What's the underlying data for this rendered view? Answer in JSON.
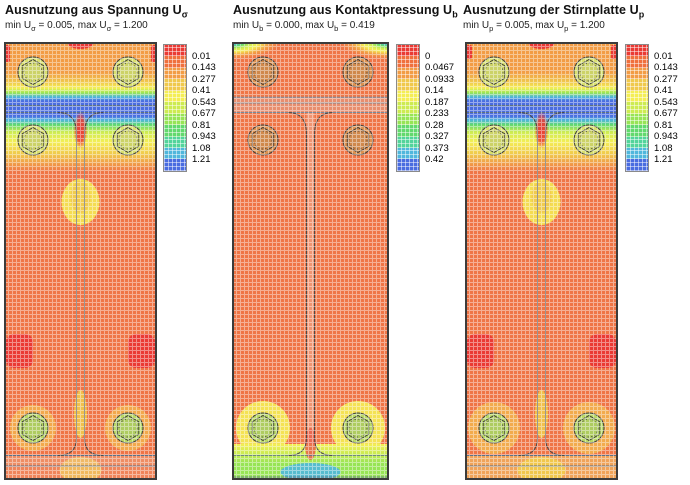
{
  "app": {
    "description": "FEA utilization contour plots of a bolted end-plate connection"
  },
  "colors": {
    "frame": "#3c3c3c",
    "outline": "#4a4a4a",
    "flange_line": "#5d7186",
    "base_plate": "#ef7546",
    "red": "#ea3a34",
    "orange_red": "#f0703d",
    "orange": "#f29c45",
    "amber": "#f0c94c",
    "yellow": "#f4ee55",
    "yellow_green": "#cdeb51",
    "light_green": "#97e455",
    "green": "#62d96d",
    "teal": "#52d49b",
    "cyan": "#4fb7dc",
    "blue": "#4a6ce0",
    "bolt_yellow": "#d9e06e",
    "bolt_green": "#b9d966",
    "bolt_brown": "#dc9150",
    "web_pink": "#f0b49c",
    "halo_amber": "#f2b14e"
  },
  "legend_colors": [
    "#ea3a34",
    "#f0703d",
    "#f29c45",
    "#f0c94c",
    "#f4ee55",
    "#cdeb51",
    "#97e455",
    "#62d96d",
    "#52d49b",
    "#4fb7dc",
    "#4a6ce0"
  ],
  "panels": [
    {
      "id": "sigma",
      "title_parts": [
        "Ausnutzung aus Spannung U",
        "σ"
      ],
      "subtitle_parts": [
        "min U",
        "σ",
        " = 0.005, max U",
        "σ",
        " = 1.200"
      ],
      "legend_labels": [
        "0.01",
        "0.143",
        "0.277",
        "0.41",
        "0.543",
        "0.677",
        "0.81",
        "0.943",
        "1.08",
        "1.21"
      ]
    },
    {
      "id": "kontakt",
      "title_parts": [
        "Ausnutzung aus Kontaktpressung U",
        "b"
      ],
      "subtitle_parts": [
        "min U",
        "b",
        " = 0.000, max U",
        "b",
        " = 0.419"
      ],
      "legend_labels": [
        "0",
        "0.0467",
        "0.0933",
        "0.14",
        "0.187",
        "0.233",
        "0.28",
        "0.327",
        "0.373",
        "0.42"
      ]
    },
    {
      "id": "stirnplatte",
      "title_parts": [
        "Ausnutzung der Stirnplatte U",
        "p"
      ],
      "subtitle_parts": [
        "min U",
        "p",
        " = 0.005, max U",
        "p",
        " = 1.200"
      ],
      "legend_labels": [
        "0.01",
        "0.143",
        "0.277",
        "0.41",
        "0.543",
        "0.677",
        "0.81",
        "0.943",
        "1.08",
        "1.21"
      ]
    }
  ],
  "chart_data": [
    {
      "type": "heatmap",
      "title": "Ausnutzung aus Spannung Uσ",
      "subtitle": "min Uσ = 0.005, max Uσ = 1.200",
      "min": 0.005,
      "max": 1.2,
      "legend_ticks": [
        0.01,
        0.143,
        0.277,
        0.41,
        0.543,
        0.677,
        0.81,
        0.943,
        1.08,
        1.21
      ],
      "colorscale": "red (low) to blue (high), 11 discrete bands",
      "notes": "End plate with 6 bolts; high (blue) utilization band at top flange, mostly low (orange) elsewhere"
    },
    {
      "type": "heatmap",
      "title": "Ausnutzung aus Kontaktpressung Ub",
      "subtitle": "min Ub = 0.000, max Ub = 0.419",
      "min": 0.0,
      "max": 0.419,
      "legend_ticks": [
        0,
        0.0467,
        0.0933,
        0.14,
        0.187,
        0.233,
        0.28,
        0.327,
        0.373,
        0.42
      ],
      "colorscale": "red (low) to blue (high), 11 discrete bands",
      "notes": "Contact pressure concentrated at bottom edge (green/cyan) and small fans at top corners"
    },
    {
      "type": "heatmap",
      "title": "Ausnutzung der Stirnplatte Up",
      "subtitle": "min Up = 0.005, max Up = 1.200",
      "min": 0.005,
      "max": 1.2,
      "legend_ticks": [
        0.01,
        0.143,
        0.277,
        0.41,
        0.543,
        0.677,
        0.81,
        0.943,
        1.08,
        1.21
      ],
      "colorscale": "red (low) to blue (high), 11 discrete bands",
      "notes": "Similar to stress plot: blue band at top flange, orange body, yellow zones at bottom bolts"
    }
  ]
}
